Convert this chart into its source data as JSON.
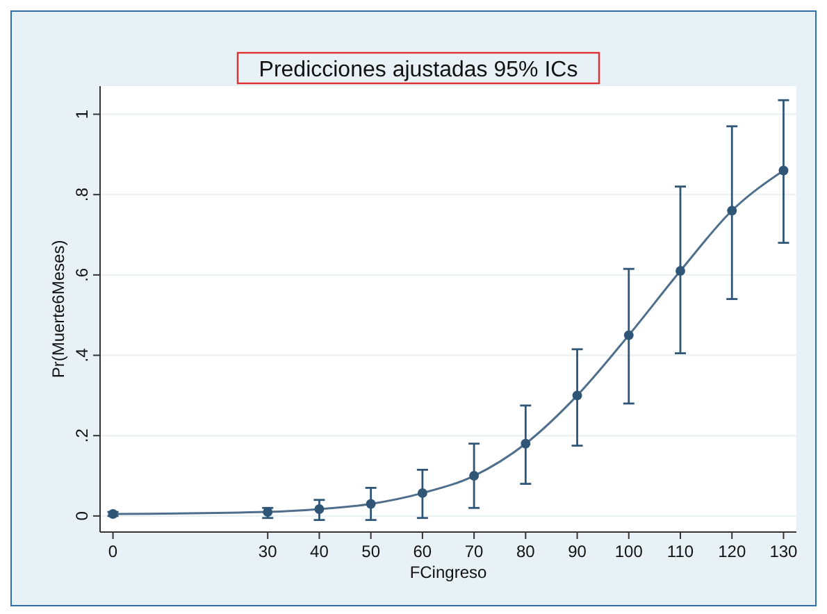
{
  "chart_data": {
    "type": "line",
    "title": "Predicciones ajustadas 95% ICs",
    "xlabel": "FCingreso",
    "ylabel": "Pr(Muerte6Meses)",
    "x": [
      0,
      30,
      40,
      50,
      60,
      70,
      80,
      90,
      100,
      110,
      120,
      130
    ],
    "series": [
      {
        "color": "#2f5577",
        "values": [
          0.005,
          0.01,
          0.017,
          0.03,
          0.057,
          0.1,
          0.18,
          0.3,
          0.45,
          0.61,
          0.76,
          0.86
        ],
        "errors": [
          [
            0,
            0.01
          ],
          [
            -0.005,
            0.02
          ],
          [
            -0.01,
            0.04
          ],
          [
            -0.01,
            0.07
          ],
          [
            -0.005,
            0.115
          ],
          [
            0.02,
            0.18
          ],
          [
            0.08,
            0.275
          ],
          [
            0.175,
            0.415
          ],
          [
            0.28,
            0.615
          ],
          [
            0.405,
            0.82
          ],
          [
            0.54,
            0.97
          ],
          [
            0.68,
            1.035
          ]
        ]
      }
    ],
    "xlim": [
      -2.5,
      132.5
    ],
    "ylim": [
      -0.04,
      1.07
    ],
    "xticks": [
      0,
      30,
      40,
      50,
      60,
      70,
      80,
      90,
      100,
      110,
      120,
      130
    ],
    "yticks": [
      0,
      {
        "value": 0.2,
        "label": ".2"
      },
      {
        "value": 0.4,
        "label": ".4"
      },
      {
        "value": 0.6,
        "label": ".6"
      },
      {
        "value": 0.8,
        "label": ".8"
      },
      1
    ],
    "grid": "y",
    "marker": "circle",
    "line_style": "solid"
  }
}
